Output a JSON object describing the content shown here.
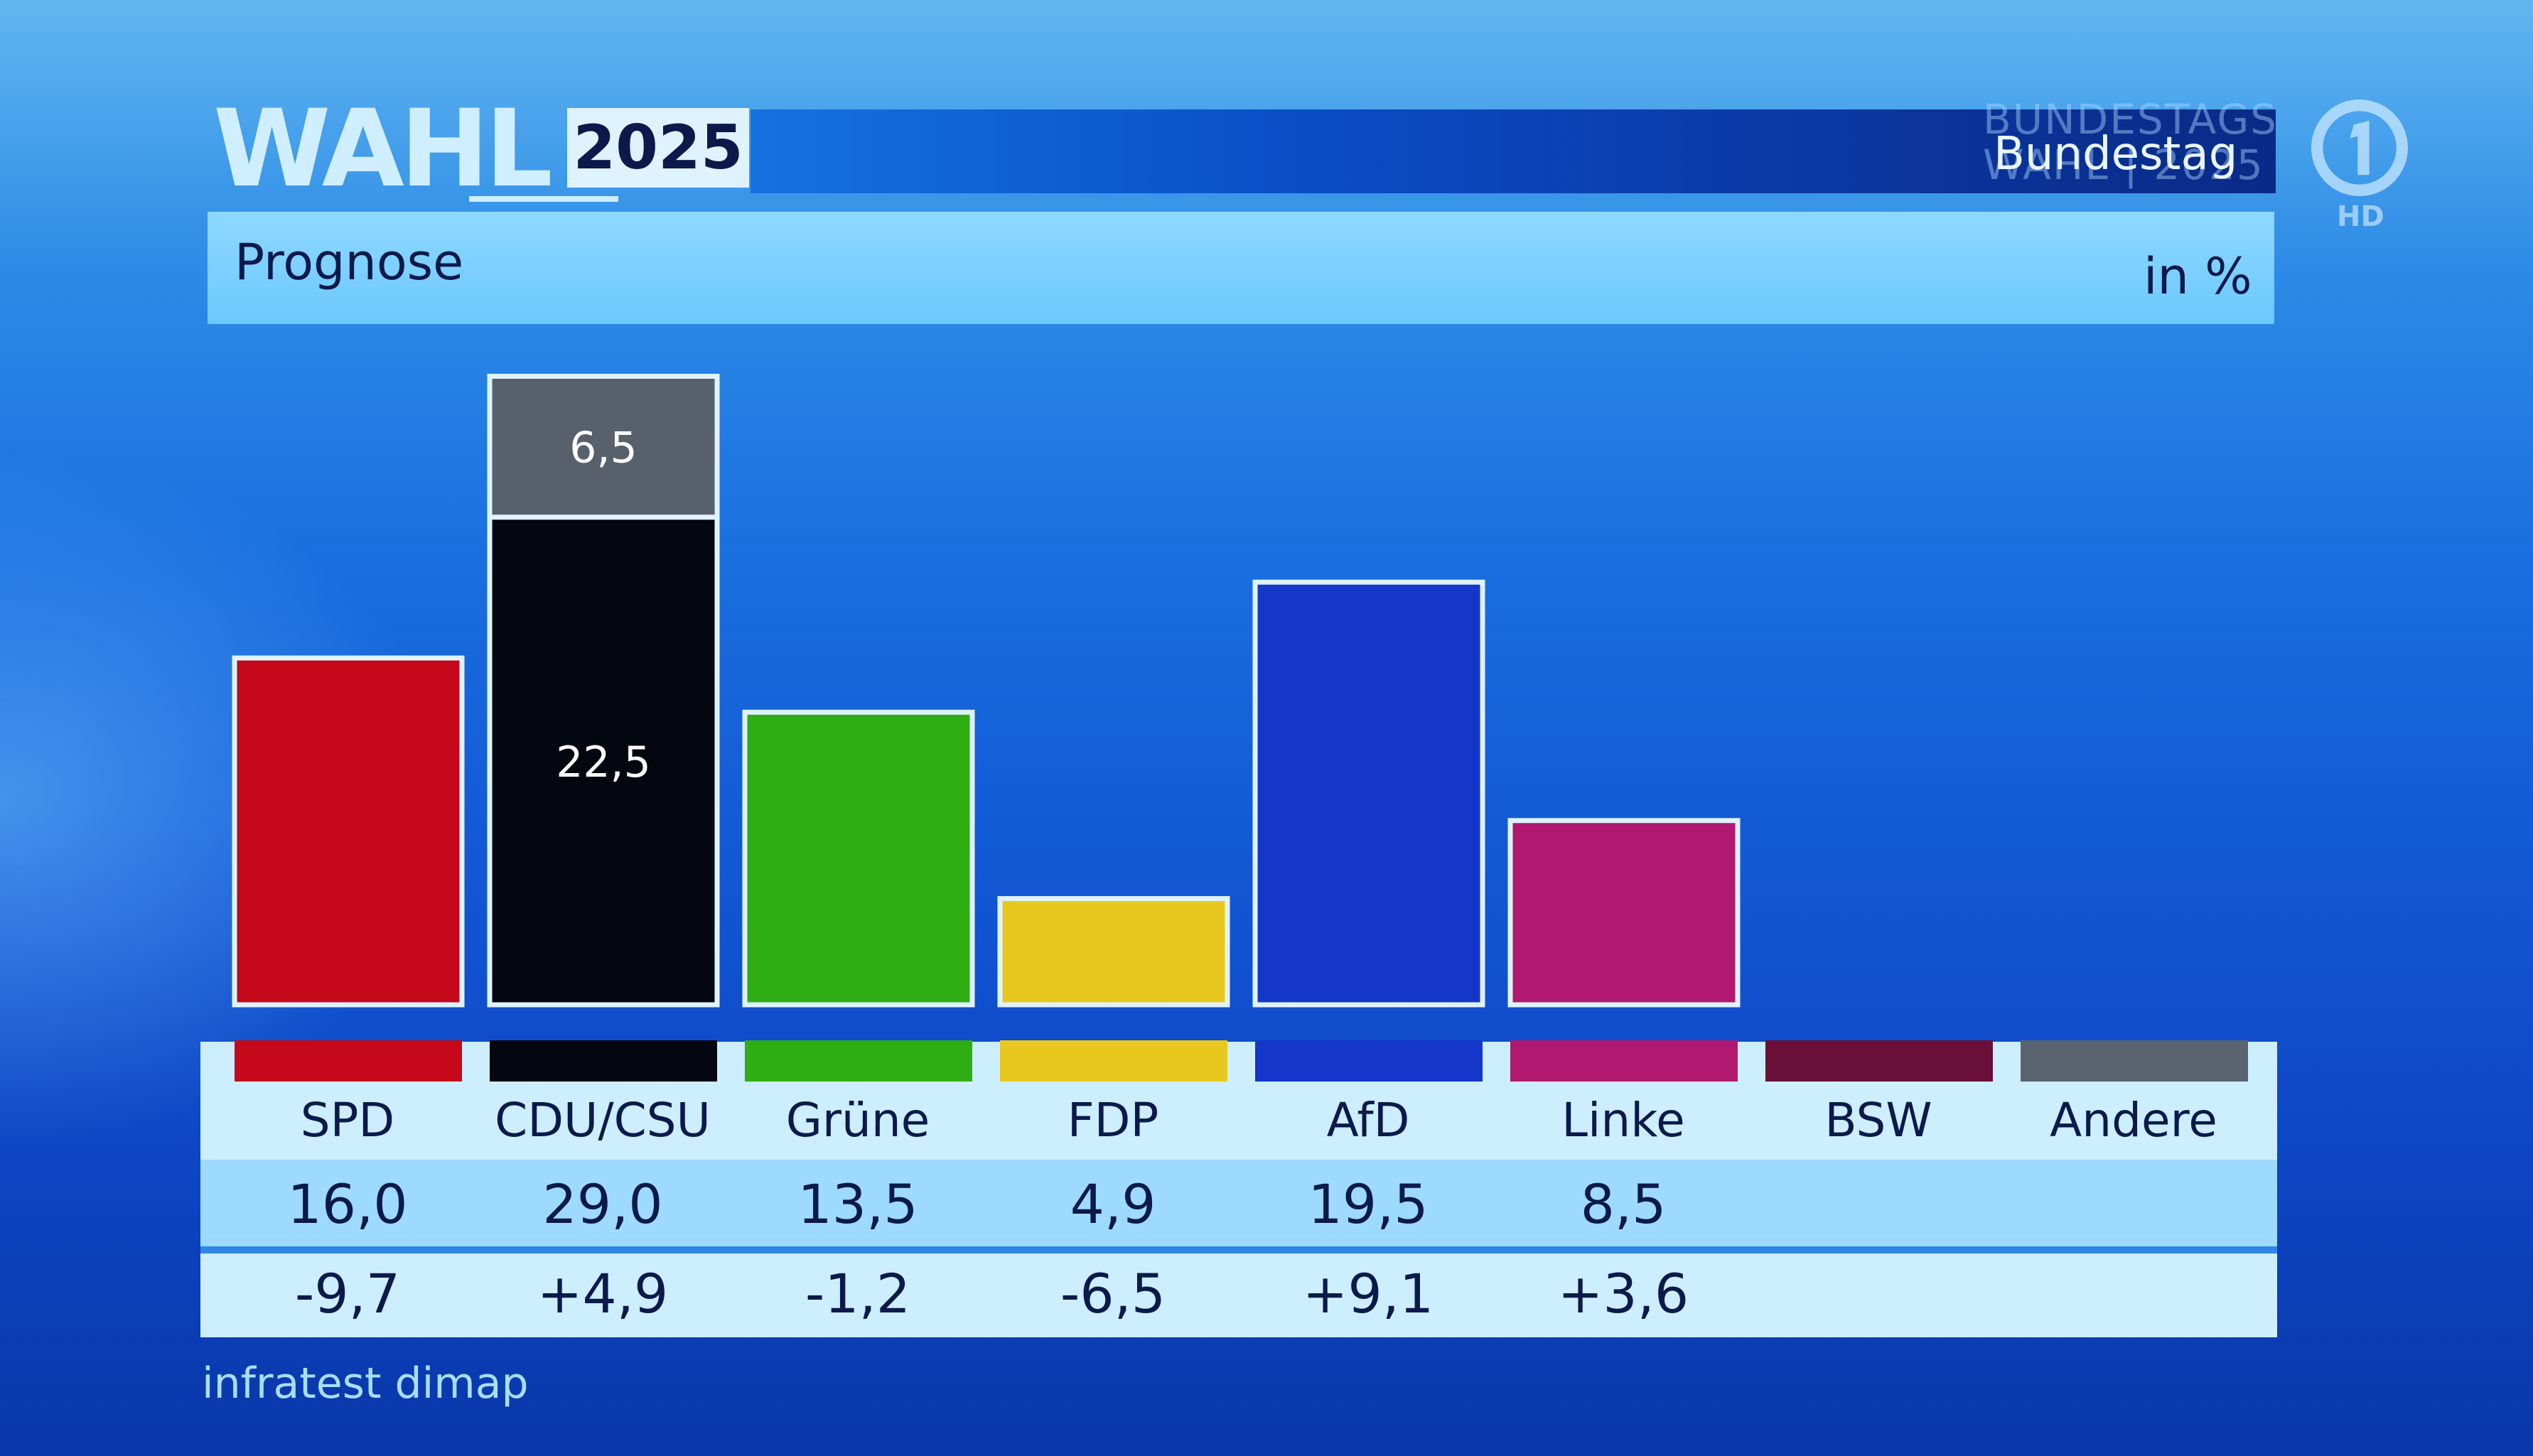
{
  "header": {
    "logo_word": "WAHL",
    "logo_year": "2025",
    "ghost_line_1": "BUNDESTAGS",
    "ghost_line_2": "WAHL | 2025",
    "right_label": "Bundestag",
    "channel_badge": "HD",
    "channel_logo_icon": "ard-one-logo-icon"
  },
  "subheader": {
    "title": "Prognose",
    "unit": "in %"
  },
  "chart_data": {
    "type": "bar",
    "title": "Prognose",
    "ylabel": "in %",
    "categories": [
      "SPD",
      "CDU/CSU",
      "Grüne",
      "FDP",
      "AfD",
      "Linke",
      "BSW",
      "Andere"
    ],
    "values": [
      16.0,
      29.0,
      13.5,
      4.9,
      19.5,
      8.5,
      null,
      null
    ],
    "stacked_segments": {
      "CDU/CSU": [
        {
          "label": "22,5",
          "value": 22.5,
          "color": "#04070f"
        },
        {
          "label": "6,5",
          "value": 6.5,
          "color": "#58606b"
        }
      ]
    },
    "colors": [
      "#c4081a",
      "#04070f",
      "#2fae13",
      "#e8c81e",
      "#1537c9",
      "#b0196f",
      "#6a0f38",
      "#5a6470"
    ],
    "bar_outline_color": "#dff3ff",
    "ylim": [
      0,
      30
    ],
    "table": {
      "values": [
        "16,0",
        "29,0",
        "13,5",
        "4,9",
        "19,5",
        "8,5",
        "",
        ""
      ],
      "differences": [
        "-9,7",
        "+4,9",
        "-1,2",
        "-6,5",
        "+9,1",
        "+3,6",
        "",
        ""
      ]
    }
  },
  "source": "infratest dimap"
}
